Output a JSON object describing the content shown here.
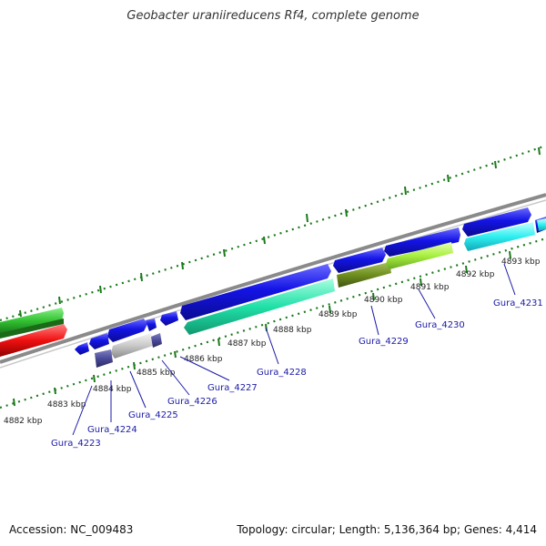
{
  "title": "Geobacter uraniireducens Rf4, complete genome",
  "footer": {
    "accession": "Accession: NC_009483",
    "summary": "Topology: circular; Length: 5,136,364 bp; Genes: 4,414"
  },
  "kbp_labels": [
    "4882 kbp",
    "4883 kbp",
    "4884 kbp",
    "4885 kbp",
    "4886 kbp",
    "4887 kbp",
    "4888 kbp",
    "4889 kbp",
    "4890 kbp",
    "4891 kbp",
    "4892 kbp",
    "4893 kbp"
  ],
  "gene_labels": [
    "Gura_4223",
    "Gura_4224",
    "Gura_4225",
    "Gura_4226",
    "Gura_4227",
    "Gura_4228",
    "Gura_4229",
    "Gura_4230",
    "Gura_4231"
  ],
  "colors": {
    "cds_forward": "#1010e0",
    "cds_reverse_dark": "#4a4a9a",
    "gene_cyan": "#2ff0f0",
    "gene_aqua": "#20e0a8",
    "gene_olive": "#6f8f1f",
    "gene_lime": "#a8f040",
    "gene_green": "#30c030",
    "gene_red": "#f01010",
    "gene_gray": "#c8c8c8",
    "backbone": "#888888",
    "ticks": "#1a7a1a",
    "label_text": "#1a1aa8"
  }
}
